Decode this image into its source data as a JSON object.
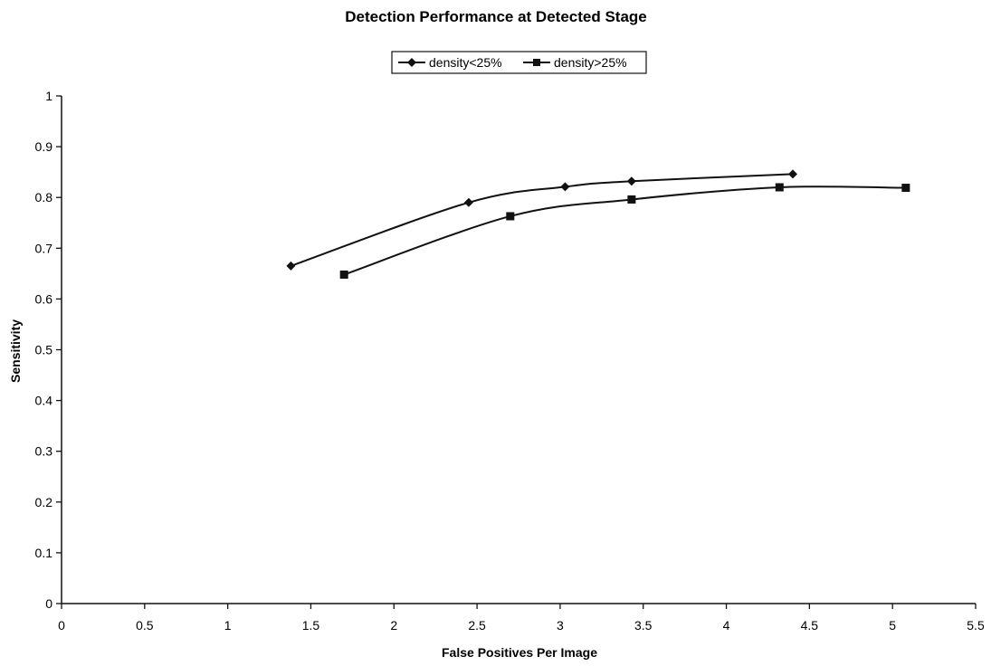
{
  "chart_data": {
    "type": "line",
    "title": "Detection Performance at Detected Stage",
    "xlabel": "False Positives Per Image",
    "ylabel": "Sensitivity",
    "xlim": [
      0,
      5.5
    ],
    "ylim": [
      0,
      1
    ],
    "x_ticks": [
      "0",
      "0.5",
      "1",
      "1.5",
      "2",
      "2.5",
      "3",
      "3.5",
      "4",
      "4.5",
      "5",
      "5.5"
    ],
    "y_ticks": [
      "0",
      "0.1",
      "0.2",
      "0.3",
      "0.4",
      "0.5",
      "0.6",
      "0.7",
      "0.8",
      "0.9",
      "1"
    ],
    "grid": false,
    "legend_position": "top-center",
    "series": [
      {
        "name": "density<25%",
        "marker": "diamond",
        "color": "#111111",
        "x": [
          1.38,
          2.45,
          3.03,
          3.43,
          4.4
        ],
        "y": [
          0.665,
          0.79,
          0.821,
          0.832,
          0.846
        ]
      },
      {
        "name": "density>25%",
        "marker": "square",
        "color": "#111111",
        "x": [
          1.7,
          2.7,
          3.43,
          4.32,
          5.08
        ],
        "y": [
          0.648,
          0.763,
          0.796,
          0.82,
          0.819
        ]
      }
    ]
  }
}
